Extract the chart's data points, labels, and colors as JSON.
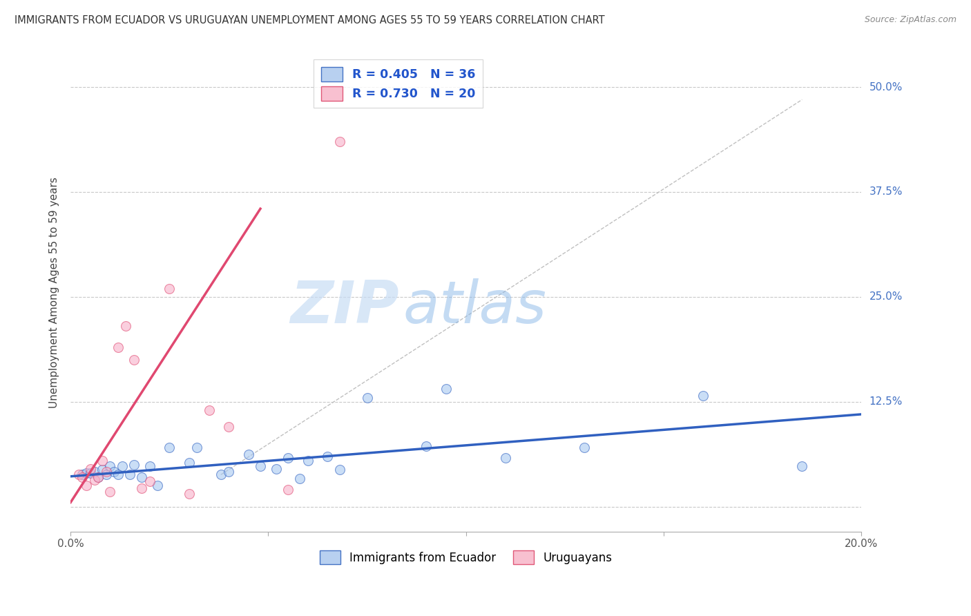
{
  "title": "IMMIGRANTS FROM ECUADOR VS URUGUAYAN UNEMPLOYMENT AMONG AGES 55 TO 59 YEARS CORRELATION CHART",
  "source": "Source: ZipAtlas.com",
  "ylabel": "Unemployment Among Ages 55 to 59 years",
  "x_min": 0.0,
  "x_max": 0.2,
  "y_min": -0.03,
  "y_max": 0.54,
  "x_ticks": [
    0.0,
    0.05,
    0.1,
    0.15,
    0.2
  ],
  "y_ticks": [
    0.0,
    0.125,
    0.25,
    0.375,
    0.5
  ],
  "y_tick_labels": [
    "",
    "12.5%",
    "25.0%",
    "37.5%",
    "50.0%"
  ],
  "legend_entries": [
    {
      "label": "R = 0.405   N = 36",
      "facecolor": "#b8d0f0",
      "edgecolor": "#4472c4",
      "text_color": "#2255cc"
    },
    {
      "label": "R = 0.730   N = 20",
      "facecolor": "#f8c0d0",
      "edgecolor": "#e05878",
      "text_color": "#2255cc"
    }
  ],
  "blue_scatter_x": [
    0.003,
    0.004,
    0.005,
    0.006,
    0.007,
    0.008,
    0.009,
    0.01,
    0.011,
    0.012,
    0.013,
    0.015,
    0.016,
    0.018,
    0.02,
    0.022,
    0.025,
    0.03,
    0.032,
    0.038,
    0.04,
    0.045,
    0.048,
    0.052,
    0.055,
    0.058,
    0.06,
    0.065,
    0.068,
    0.075,
    0.09,
    0.095,
    0.11,
    0.13,
    0.16,
    0.185
  ],
  "blue_scatter_y": [
    0.038,
    0.04,
    0.04,
    0.042,
    0.035,
    0.044,
    0.038,
    0.048,
    0.042,
    0.038,
    0.048,
    0.038,
    0.05,
    0.035,
    0.048,
    0.025,
    0.07,
    0.052,
    0.07,
    0.038,
    0.042,
    0.062,
    0.048,
    0.045,
    0.058,
    0.033,
    0.055,
    0.06,
    0.044,
    0.13,
    0.072,
    0.14,
    0.058,
    0.07,
    0.132,
    0.048
  ],
  "pink_scatter_x": [
    0.002,
    0.003,
    0.004,
    0.005,
    0.006,
    0.007,
    0.008,
    0.009,
    0.01,
    0.012,
    0.014,
    0.016,
    0.018,
    0.02,
    0.025,
    0.03,
    0.035,
    0.04,
    0.055,
    0.068
  ],
  "pink_scatter_y": [
    0.038,
    0.035,
    0.025,
    0.045,
    0.032,
    0.035,
    0.055,
    0.042,
    0.018,
    0.19,
    0.215,
    0.175,
    0.022,
    0.03,
    0.26,
    0.015,
    0.115,
    0.095,
    0.02,
    0.435
  ],
  "blue_line_x": [
    0.0,
    0.2
  ],
  "blue_line_y": [
    0.036,
    0.11
  ],
  "pink_line_x": [
    0.0,
    0.048
  ],
  "pink_line_y": [
    0.005,
    0.355
  ],
  "diagonal_line_x": [
    0.038,
    0.185
  ],
  "diagonal_line_y": [
    0.038,
    0.485
  ],
  "bg_color": "#ffffff",
  "grid_color": "#c8c8c8",
  "blue_color": "#a8c8f0",
  "pink_color": "#f8b0c8",
  "blue_line_color": "#3060c0",
  "pink_line_color": "#e04870",
  "diagonal_color": "#c0c0c0",
  "watermark_zip": "ZIP",
  "watermark_atlas": "atlas",
  "scatter_size": 100
}
